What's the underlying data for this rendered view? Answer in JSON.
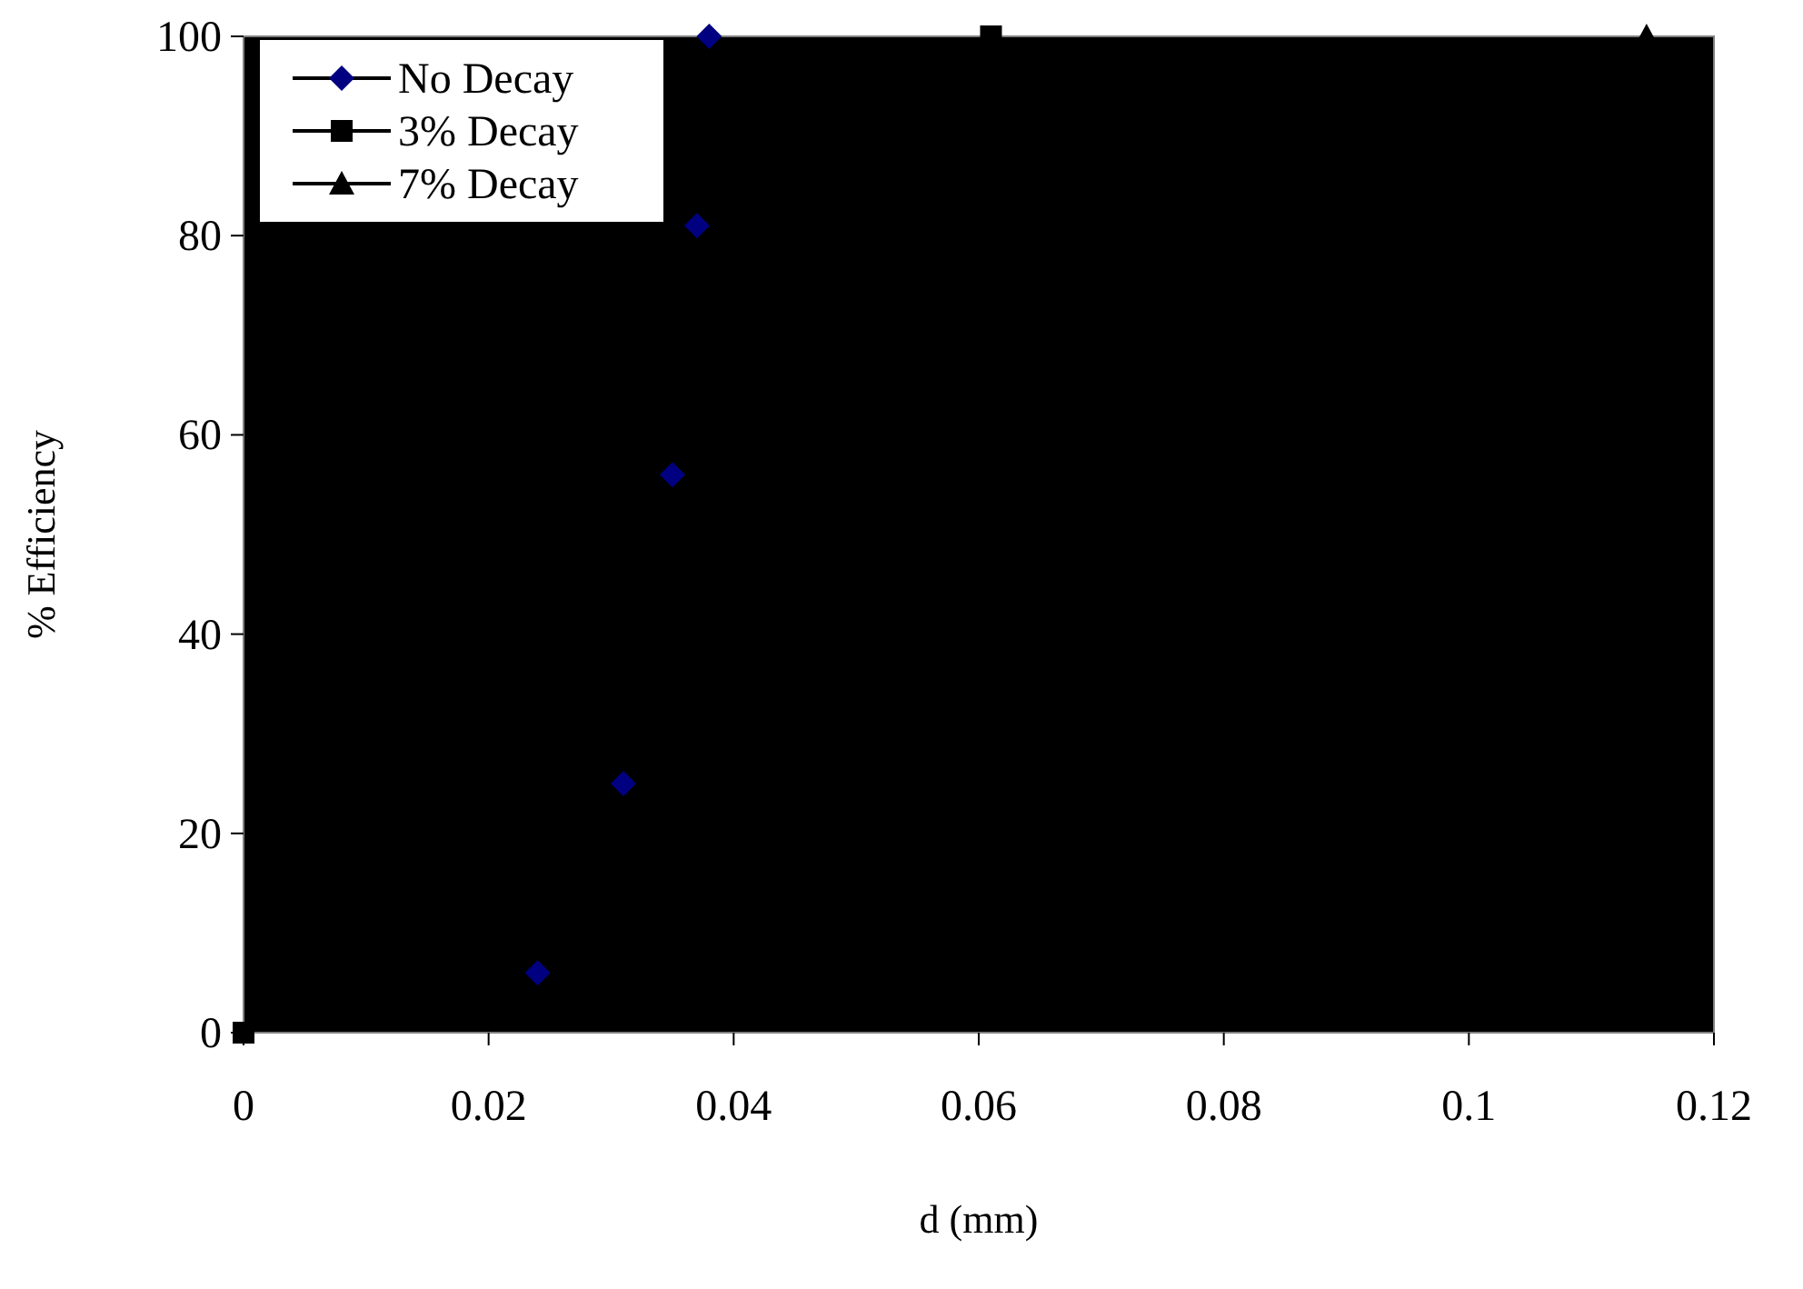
{
  "chart_data": {
    "type": "scatter",
    "xlabel": "d (mm)",
    "ylabel": "% Efficiency",
    "xlim": [
      0,
      0.12
    ],
    "xticks": [
      0,
      0.02,
      0.04,
      0.06,
      0.08,
      0.1,
      0.12
    ],
    "ylim": [
      0,
      100
    ],
    "yticks": [
      0,
      20,
      40,
      60,
      80,
      100
    ],
    "grid": false,
    "legend": "top left",
    "line_style": "solid",
    "series": [
      {
        "name": "No Decay",
        "color": "#000080",
        "marker": "diamond",
        "x": [
          0.024,
          0.031,
          0.035,
          0.037,
          0.038
        ],
        "values": [
          6,
          25,
          56,
          81,
          100
        ]
      },
      {
        "name": "3% Decay",
        "color": "#000000",
        "marker": "square",
        "x": [
          0,
          0.061
        ],
        "values": [
          0,
          100
        ]
      },
      {
        "name": "7% Decay",
        "color": "#000000",
        "marker": "triangle",
        "x": [
          0.1145
        ],
        "values": [
          100
        ]
      }
    ]
  }
}
